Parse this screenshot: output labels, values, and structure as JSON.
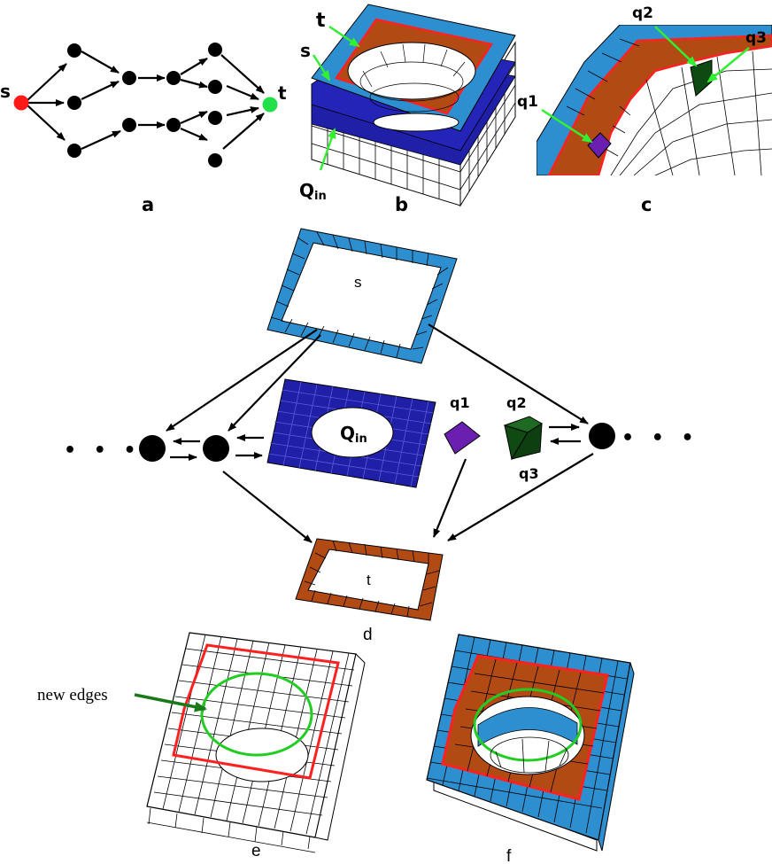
{
  "colors": {
    "node": "#000000",
    "source": "#ff1a1a",
    "sink": "#22e04a",
    "blue_light": "#2e8fd0",
    "blue_dark": "#1f1fa8",
    "orange": "#b24a14",
    "red_line": "#ff2020",
    "green_line": "#22cc22",
    "arrow_green": "#33ee33",
    "purple": "#6a1fb0",
    "dark_green": "#0f4a12"
  },
  "panel_a": {
    "caption": "a",
    "source_label": "s",
    "sink_label": "t"
  },
  "panel_b": {
    "caption": "b",
    "label_t": "t",
    "label_s": "s",
    "label_qin": "Q",
    "label_qin_sub": "in"
  },
  "panel_c": {
    "caption": "c",
    "label_q1": "q1",
    "label_q2": "q2",
    "label_q3": "q3"
  },
  "panel_d": {
    "caption": "d",
    "label_s": "s",
    "label_t": "t",
    "label_qin": "Q",
    "label_qin_sub": "in",
    "label_q1": "q1",
    "label_q2": "q2",
    "label_q3": "q3",
    "ellipsis_left": "• • •",
    "ellipsis_right": "• • •"
  },
  "panel_e": {
    "caption": "e",
    "annotation": "new edges"
  },
  "panel_f": {
    "caption": "f"
  }
}
